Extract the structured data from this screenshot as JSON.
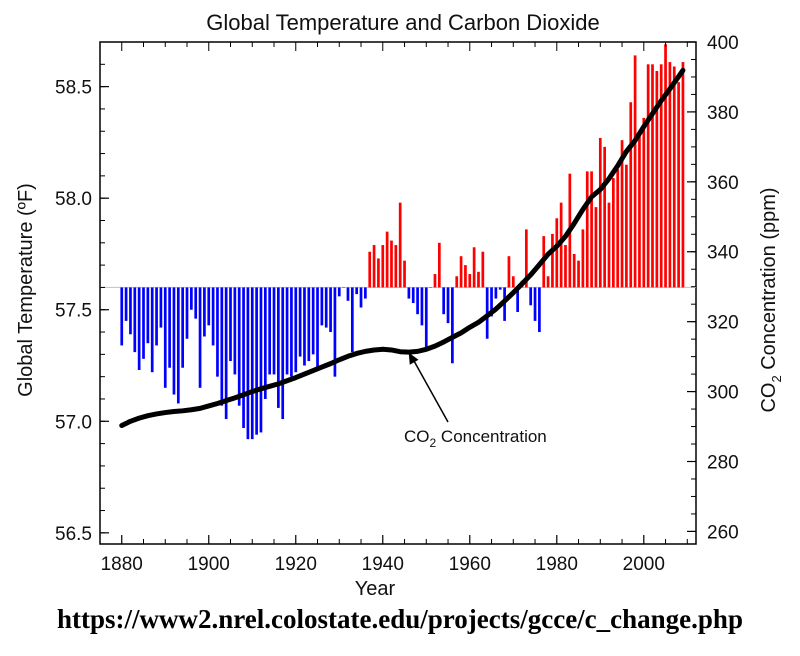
{
  "source_url": "https://www2.nrel.colostate.edu/projects/gcce/c_change.php",
  "chart_data": {
    "type": "bar",
    "title": "Global Temperature and Carbon Dioxide",
    "xlabel": "Year",
    "ylabel": "Global Temperature (ºF)",
    "y2label_parts": [
      "CO",
      "2",
      " Concentration (ppm)"
    ],
    "xlim": [
      1875,
      2012
    ],
    "ylim": [
      56.45,
      58.7
    ],
    "y2lim": [
      256.4,
      400
    ],
    "baseline": 57.6,
    "x_ticks": [
      "1880",
      "1900",
      "1920",
      "1940",
      "1960",
      "1980",
      "2000"
    ],
    "y_ticks": [
      "56.5",
      "57.0",
      "57.5",
      "58.0",
      "58.5"
    ],
    "y2_ticks": [
      "260",
      "280",
      "300",
      "320",
      "340",
      "360",
      "380",
      "400"
    ],
    "colors": {
      "above": "#ff0000",
      "below": "#0000ff",
      "co2_line": "#000000",
      "baseline": "#c8c8c8"
    },
    "temperature_series": {
      "name": "Global Temperature",
      "years": [
        1880,
        1881,
        1882,
        1883,
        1884,
        1885,
        1886,
        1887,
        1888,
        1889,
        1890,
        1891,
        1892,
        1893,
        1894,
        1895,
        1896,
        1897,
        1898,
        1899,
        1900,
        1901,
        1902,
        1903,
        1904,
        1905,
        1906,
        1907,
        1908,
        1909,
        1910,
        1911,
        1912,
        1913,
        1914,
        1915,
        1916,
        1917,
        1918,
        1919,
        1920,
        1921,
        1922,
        1923,
        1924,
        1925,
        1926,
        1927,
        1928,
        1929,
        1930,
        1931,
        1932,
        1933,
        1934,
        1935,
        1936,
        1937,
        1938,
        1939,
        1940,
        1941,
        1942,
        1943,
        1944,
        1945,
        1946,
        1947,
        1948,
        1949,
        1950,
        1951,
        1952,
        1953,
        1954,
        1955,
        1956,
        1957,
        1958,
        1959,
        1960,
        1961,
        1962,
        1963,
        1964,
        1965,
        1966,
        1967,
        1968,
        1969,
        1970,
        1971,
        1972,
        1973,
        1974,
        1975,
        1976,
        1977,
        1978,
        1979,
        1980,
        1981,
        1982,
        1983,
        1984,
        1985,
        1986,
        1987,
        1988,
        1989,
        1990,
        1991,
        1992,
        1993,
        1994,
        1995,
        1996,
        1997,
        1998,
        1999,
        2000,
        2001,
        2002,
        2003,
        2004,
        2005,
        2006,
        2007,
        2008,
        2009
      ],
      "values": [
        57.34,
        57.45,
        57.39,
        57.31,
        57.23,
        57.28,
        57.35,
        57.22,
        57.34,
        57.42,
        57.15,
        57.24,
        57.12,
        57.08,
        57.24,
        57.37,
        57.5,
        57.46,
        57.15,
        57.38,
        57.43,
        57.34,
        57.2,
        57.07,
        57.01,
        57.27,
        57.21,
        57.07,
        56.97,
        56.92,
        56.92,
        56.94,
        56.95,
        57.1,
        57.21,
        57.21,
        57.06,
        57.01,
        57.21,
        57.2,
        57.22,
        57.29,
        57.25,
        57.27,
        57.3,
        57.23,
        57.43,
        57.42,
        57.4,
        57.2,
        57.56,
        57.6,
        57.54,
        57.31,
        57.57,
        57.51,
        57.55,
        57.76,
        57.79,
        57.73,
        57.79,
        57.85,
        57.81,
        57.79,
        57.98,
        57.72,
        57.55,
        57.53,
        57.48,
        57.43,
        57.32,
        57.6,
        57.66,
        57.8,
        57.48,
        57.44,
        57.26,
        57.65,
        57.74,
        57.7,
        57.66,
        57.78,
        57.67,
        57.76,
        57.37,
        57.47,
        57.55,
        57.59,
        57.45,
        57.74,
        57.65,
        57.49,
        57.63,
        57.86,
        57.52,
        57.45,
        57.4,
        57.83,
        57.65,
        57.84,
        57.91,
        57.98,
        57.79,
        58.11,
        57.75,
        57.72,
        57.86,
        58.12,
        58.12,
        57.96,
        58.27,
        58.23,
        57.98,
        58.09,
        58.13,
        58.26,
        58.15,
        58.43,
        58.64,
        58.3,
        58.36,
        58.6,
        58.6,
        58.57,
        58.6,
        58.69,
        58.61,
        58.59,
        58.52,
        58.61
      ]
    },
    "co2_series": {
      "name": "CO2 Concentration",
      "x": [
        1880,
        1882,
        1884,
        1886,
        1888,
        1890,
        1892,
        1894,
        1896,
        1898,
        1900,
        1902,
        1904,
        1906,
        1908,
        1910,
        1912,
        1914,
        1916,
        1918,
        1920,
        1922,
        1924,
        1926,
        1928,
        1930,
        1932,
        1934,
        1936,
        1938,
        1940,
        1942,
        1944,
        1946,
        1948,
        1950,
        1952,
        1954,
        1956,
        1958,
        1960,
        1962,
        1964,
        1966,
        1968,
        1970,
        1972,
        1974,
        1976,
        1978,
        1980,
        1982,
        1984,
        1986,
        1988,
        1990,
        1992,
        1994,
        1996,
        1998,
        2000,
        2002,
        2004,
        2006,
        2008,
        2009
      ],
      "values": [
        290.3,
        291.5,
        292.4,
        293.1,
        293.6,
        294.0,
        294.3,
        294.5,
        294.8,
        295.2,
        295.9,
        296.6,
        297.4,
        298.2,
        299.1,
        300.0,
        300.8,
        301.5,
        302.2,
        303.1,
        304.0,
        305.0,
        306.0,
        307.0,
        308.0,
        309.1,
        310.1,
        310.9,
        311.5,
        311.9,
        312.1,
        311.9,
        311.4,
        311.3,
        311.5,
        312.1,
        313.0,
        314.2,
        315.5,
        316.8,
        318.4,
        319.8,
        321.7,
        323.6,
        325.9,
        328.3,
        330.8,
        333.4,
        336.3,
        339.3,
        341.6,
        344.4,
        348.1,
        352.1,
        355.7,
        357.8,
        360.9,
        364.6,
        368.7,
        371.8,
        375.8,
        379.5,
        383.2,
        386.6,
        390.1,
        391.9
      ],
      "annotation_parts": [
        "CO",
        "2",
        " Concentration"
      ],
      "annotation_anchor": [
        1945.5,
        312
      ]
    }
  }
}
